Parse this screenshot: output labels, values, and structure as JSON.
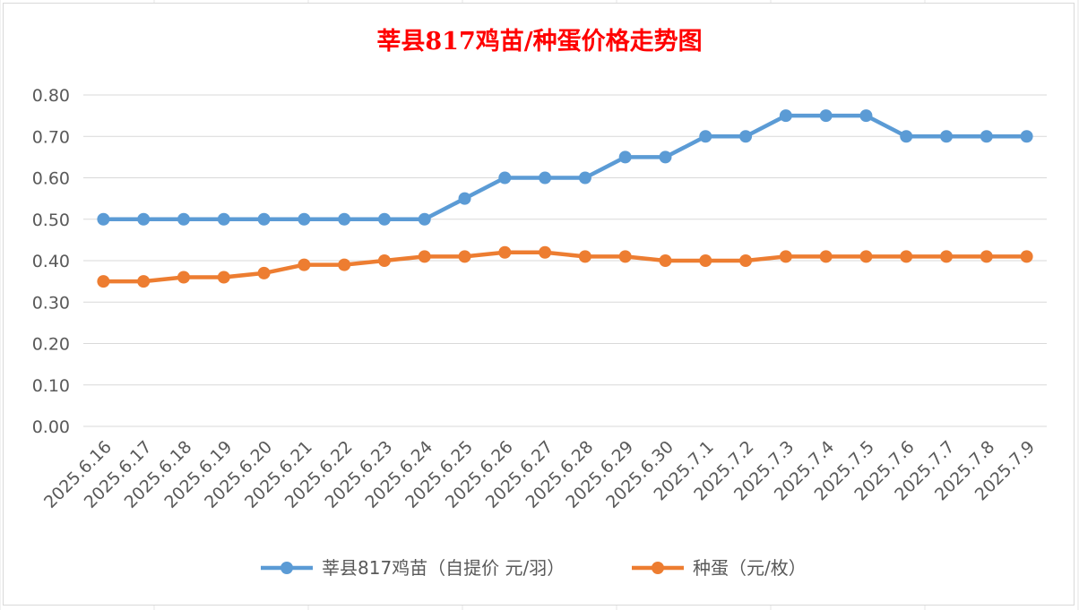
{
  "chart_data": {
    "type": "line",
    "title": "莘县817鸡苗/种蛋价格走势图",
    "categories": [
      "2025.6.16",
      "2025.6.17",
      "2025.6.18",
      "2025.6.19",
      "2025.6.20",
      "2025.6.21",
      "2025.6.22",
      "2025.6.23",
      "2025.6.24",
      "2025.6.25",
      "2025.6.26",
      "2025.6.27",
      "2025.6.28",
      "2025.6.29",
      "2025.6.30",
      "2025.7.1",
      "2025.7.2",
      "2025.7.3",
      "2025.7.4",
      "2025.7.5",
      "2025.7.6",
      "2025.7.7",
      "2025.7.8",
      "2025.7.9"
    ],
    "series": [
      {
        "name": "莘县817鸡苗（自提价 元/羽）",
        "color": "#5b9bd5",
        "values": [
          0.5,
          0.5,
          0.5,
          0.5,
          0.5,
          0.5,
          0.5,
          0.5,
          0.5,
          0.55,
          0.6,
          0.6,
          0.6,
          0.65,
          0.65,
          0.7,
          0.7,
          0.75,
          0.75,
          0.75,
          0.7,
          0.7,
          0.7,
          0.7
        ]
      },
      {
        "name": "种蛋（元/枚）",
        "color": "#ed7d31",
        "values": [
          0.35,
          0.35,
          0.36,
          0.36,
          0.37,
          0.39,
          0.39,
          0.4,
          0.41,
          0.41,
          0.42,
          0.42,
          0.41,
          0.41,
          0.4,
          0.4,
          0.4,
          0.41,
          0.41,
          0.41,
          0.41,
          0.41,
          0.41,
          0.41
        ]
      }
    ],
    "ylim": [
      0,
      0.8
    ],
    "yticks": [
      "0.00",
      "0.10",
      "0.20",
      "0.30",
      "0.40",
      "0.50",
      "0.60",
      "0.70",
      "0.80"
    ],
    "grid": true,
    "legend_position": "bottom"
  }
}
